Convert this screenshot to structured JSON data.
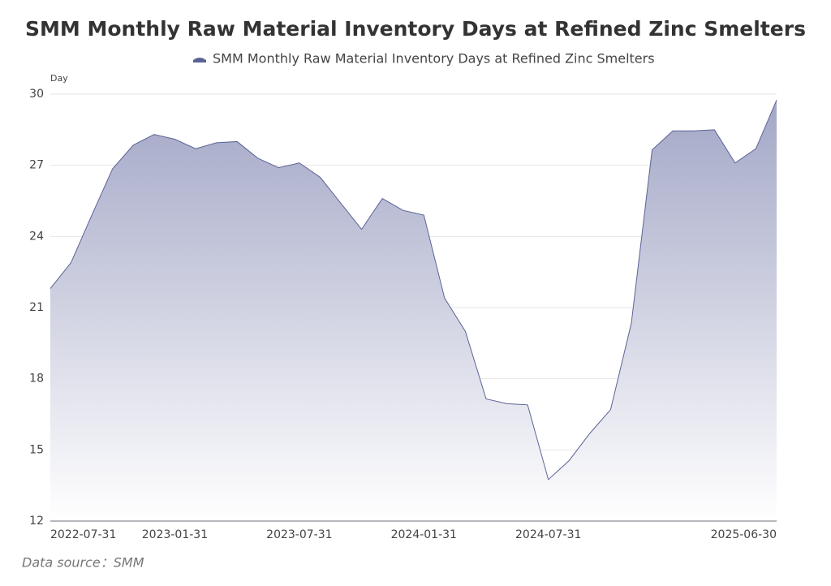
{
  "chart_data": {
    "type": "area",
    "title": "SMM Monthly Raw Material Inventory Days at Refined Zinc Smelters",
    "y_label": "Day",
    "source": "Data source：SMM",
    "categories": [
      "2022-07-31",
      null,
      null,
      null,
      null,
      null,
      "2023-01-31",
      null,
      null,
      null,
      null,
      null,
      "2023-07-31",
      null,
      null,
      null,
      null,
      null,
      "2024-01-31",
      null,
      null,
      null,
      null,
      null,
      "2024-07-31",
      null,
      null,
      null,
      null,
      null,
      null,
      null,
      null,
      null,
      null,
      "2025-06-30"
    ],
    "series": [
      {
        "name": "SMM Monthly Raw Material Inventory Days at Refined Zinc Smelters",
        "color": "#5b6396",
        "values": [
          21.8,
          22.9,
          24.9,
          26.85,
          27.85,
          28.3,
          28.1,
          27.7,
          27.95,
          28.0,
          27.3,
          26.9,
          27.1,
          26.5,
          25.4,
          24.3,
          25.6,
          25.1,
          24.9,
          21.4,
          20.0,
          17.15,
          16.95,
          16.9,
          13.75,
          14.55,
          15.7,
          16.7,
          20.35,
          27.65,
          28.45,
          28.45,
          28.5,
          27.1,
          27.7,
          29.75
        ]
      }
    ],
    "ylim": [
      12,
      30
    ],
    "yticks": [
      12,
      15,
      18,
      21,
      24,
      27,
      30
    ],
    "grid": true
  }
}
